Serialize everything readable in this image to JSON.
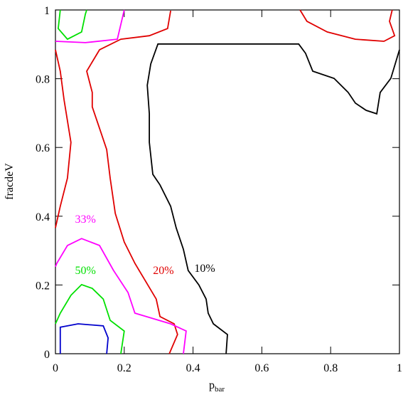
{
  "chart_data": {
    "type": "contour",
    "x_label": "p",
    "x_label_sub": "bar",
    "y_label": "fracdeV",
    "xlim": [
      0,
      1
    ],
    "ylim": [
      0,
      1
    ],
    "xticks": [
      0,
      0.2,
      0.4,
      0.6,
      0.8,
      1
    ],
    "yticks": [
      0,
      0.2,
      0.4,
      0.6,
      0.8,
      1
    ],
    "series": [
      {
        "name": "10%",
        "color": "#000000",
        "x": [
          0.496,
          0.5,
          0.459,
          0.444,
          0.438,
          0.417,
          0.386,
          0.372,
          0.351,
          0.335,
          0.304,
          0.283,
          0.273,
          0.273,
          0.267,
          0.277,
          0.298,
          0.707,
          0.727,
          0.748,
          0.81,
          0.851,
          0.872,
          0.903,
          0.934,
          0.944,
          0.975,
          1
        ],
        "y": [
          0,
          0.056,
          0.087,
          0.118,
          0.159,
          0.2,
          0.242,
          0.304,
          0.366,
          0.429,
          0.491,
          0.522,
          0.615,
          0.698,
          0.781,
          0.843,
          0.901,
          0.901,
          0.874,
          0.822,
          0.801,
          0.76,
          0.729,
          0.708,
          0.698,
          0.76,
          0.801,
          0.884
        ]
      },
      {
        "name": "20%",
        "color": "#e00000",
        "x": [
          0.331,
          0.355,
          0.345,
          0.304,
          0.293,
          0.262,
          0.231,
          0.2,
          0.174,
          0.159,
          0.149,
          0.128,
          0.107,
          0.107,
          0.091,
          0.128,
          0.19,
          0.273,
          0.326,
          0.335,
          null,
          0,
          0.014,
          0.025,
          0.045,
          0.035,
          0.014,
          0,
          null,
          0.711,
          0.731,
          0.79,
          0.872,
          0.955,
          0.986,
          0.971,
          0.979
        ],
        "y": [
          0,
          0.056,
          0.087,
          0.108,
          0.159,
          0.211,
          0.263,
          0.325,
          0.408,
          0.511,
          0.594,
          0.656,
          0.718,
          0.76,
          0.822,
          0.884,
          0.915,
          0.925,
          0.946,
          0.998,
          null,
          0.884,
          0.822,
          0.739,
          0.615,
          0.511,
          0.429,
          0.366,
          null,
          1,
          0.967,
          0.936,
          0.915,
          0.909,
          0.925,
          0.967,
          1
        ]
      },
      {
        "name": "33%",
        "color": "#ff00ff",
        "x": [
          0.372,
          0.38,
          0.335,
          0.231,
          0.211,
          0.169,
          0.128,
          0.076,
          0.035,
          0.004,
          0,
          null,
          0,
          0.087,
          0.18,
          0.2
        ],
        "y": [
          0,
          0.066,
          0.087,
          0.118,
          0.178,
          0.242,
          0.315,
          0.335,
          0.315,
          0.263,
          0.253,
          null,
          0.909,
          0.905,
          0.915,
          1
        ]
      },
      {
        "name": "50%",
        "color": "#00e000",
        "x": [
          0.19,
          0.2,
          0.159,
          0.139,
          0.107,
          0.076,
          0.045,
          0.014,
          0,
          null,
          0.014,
          0.008,
          0.035,
          0.076,
          0.087,
          0.091
        ],
        "y": [
          0,
          0.066,
          0.097,
          0.159,
          0.19,
          0.201,
          0.17,
          0.118,
          0.087,
          null,
          1,
          0.946,
          0.915,
          0.936,
          0.988,
          1
        ]
      },
      {
        "color": "#0000cc",
        "x": [
          0.014,
          0.014,
          0.066,
          0.139,
          0.153,
          0.149
        ],
        "y": [
          0,
          0.077,
          0.087,
          0.081,
          0.046,
          0
        ]
      }
    ]
  }
}
